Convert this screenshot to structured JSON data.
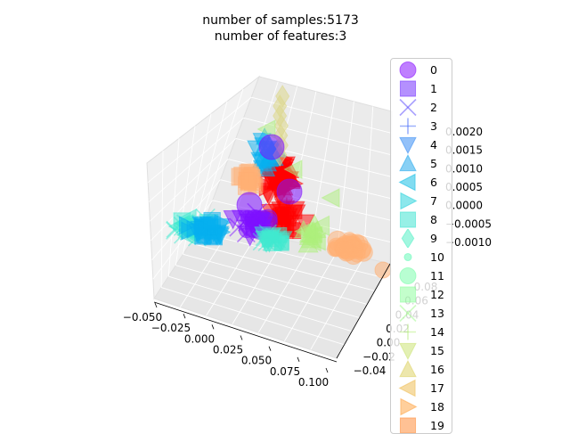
{
  "chart_data": {
    "type": "scatter",
    "projection": "3d",
    "title_lines": [
      "number of samples:5173",
      "number of features:3"
    ],
    "x_ticks": [
      "−0.050",
      "−0.025",
      "0.000",
      "0.025",
      "0.050",
      "0.075",
      "0.100"
    ],
    "y_ticks": [
      "−0.04",
      "−0.02",
      "0.00",
      "0.02",
      "0.04",
      "0.06",
      "0.08"
    ],
    "z_ticks": [
      "−0.0010",
      "−0.0005",
      "0.0000",
      "0.0005",
      "0.0010",
      "0.0015",
      "0.0020"
    ],
    "grid": true,
    "legend_position": "right",
    "alpha": 0.5,
    "series": [
      {
        "name": "0",
        "marker": "circle",
        "color": "#8000ff"
      },
      {
        "name": "1",
        "marker": "square",
        "color": "#6a22fe"
      },
      {
        "name": "2",
        "marker": "x",
        "color": "#5444fd"
      },
      {
        "name": "3",
        "marker": "plus",
        "color": "#3e64f9"
      },
      {
        "name": "4",
        "marker": "triangle-down",
        "color": "#2884f4"
      },
      {
        "name": "5",
        "marker": "triangle-up",
        "color": "#12a1ec"
      },
      {
        "name": "6",
        "marker": "triangle-left",
        "color": "#04b9e3"
      },
      {
        "name": "7",
        "marker": "triangle-right",
        "color": "#1acfd9"
      },
      {
        "name": "8",
        "marker": "square",
        "color": "#30e2ce"
      },
      {
        "name": "9",
        "marker": "diamond",
        "color": "#46f0c1"
      },
      {
        "name": "10",
        "marker": "small-circle",
        "color": "#5cf9b4"
      },
      {
        "name": "11",
        "marker": "circle",
        "color": "#72fea6"
      },
      {
        "name": "12",
        "marker": "square",
        "color": "#88fe97"
      },
      {
        "name": "13",
        "marker": "x",
        "color": "#9ef988"
      },
      {
        "name": "14",
        "marker": "plus",
        "color": "#b4f079"
      },
      {
        "name": "15",
        "marker": "triangle-down",
        "color": "#c8e269"
      },
      {
        "name": "16",
        "marker": "triangle-up",
        "color": "#dccf59"
      },
      {
        "name": "17",
        "marker": "triangle-left",
        "color": "#eeb949"
      },
      {
        "name": "18",
        "marker": "triangle-right",
        "color": "#ff9f39"
      },
      {
        "name": "19",
        "marker": "square",
        "color": "#ff8429"
      }
    ],
    "visible_cluster_colors": [
      "#ff0000",
      "#ffb074",
      "#ddd78a",
      "#3fe9cf",
      "#05b0f0",
      "#7d10ff",
      "#adf07c"
    ]
  }
}
